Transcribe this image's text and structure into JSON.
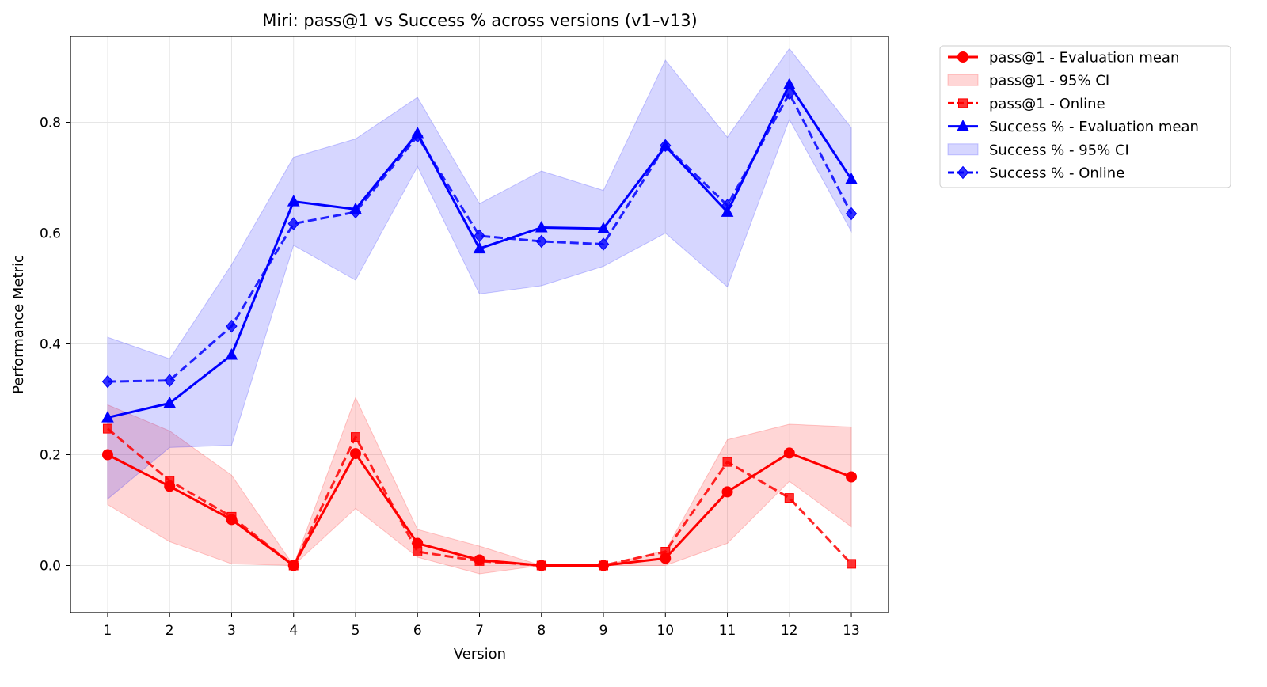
{
  "chart_data": {
    "type": "line",
    "title": "Miri: pass@1 vs Success % across versions (v1–v13)",
    "xlabel": "Version",
    "ylabel": "Performance Metric",
    "x": [
      1,
      2,
      3,
      4,
      5,
      6,
      7,
      8,
      9,
      10,
      11,
      12,
      13
    ],
    "xlim": [
      0.4,
      13.6
    ],
    "ylim": [
      -0.085,
      0.955
    ],
    "yticks": [
      0.0,
      0.2,
      0.4,
      0.6,
      0.8
    ],
    "ytick_labels": [
      "0.0",
      "0.2",
      "0.4",
      "0.6",
      "0.8"
    ],
    "grid": true,
    "legend_position": "outside-right-top",
    "series": [
      {
        "name": "pass@1 - Evaluation mean",
        "kind": "line",
        "marker": "circle",
        "linestyle": "solid",
        "color": "#ff0000",
        "values": [
          0.2,
          0.143,
          0.083,
          0.0,
          0.202,
          0.04,
          0.01,
          0.0,
          0.0,
          0.013,
          0.133,
          0.203,
          0.16
        ]
      },
      {
        "name": "pass@1 - 95% CI",
        "kind": "band",
        "color": "#ff0000",
        "lower": [
          0.11,
          0.043,
          0.003,
          0.0,
          0.103,
          0.015,
          -0.015,
          0.0,
          0.0,
          0.0,
          0.04,
          0.152,
          0.07
        ],
        "upper": [
          0.29,
          0.243,
          0.163,
          0.0,
          0.303,
          0.065,
          0.035,
          0.0,
          0.0,
          0.027,
          0.227,
          0.255,
          0.25
        ]
      },
      {
        "name": "pass@1 - Online",
        "kind": "line",
        "marker": "square",
        "linestyle": "dashed",
        "color": "#ff0000",
        "values": [
          0.247,
          0.153,
          0.088,
          0.0,
          0.232,
          0.025,
          0.008,
          0.0,
          0.0,
          0.025,
          0.187,
          0.122,
          0.003
        ]
      },
      {
        "name": "Success % - Evaluation mean",
        "kind": "line",
        "marker": "triangle",
        "linestyle": "solid",
        "color": "#0000ff",
        "values": [
          0.267,
          0.293,
          0.38,
          0.657,
          0.643,
          0.78,
          0.572,
          0.61,
          0.608,
          0.757,
          0.638,
          0.868,
          0.697
        ]
      },
      {
        "name": "Success % - 95% CI",
        "kind": "band",
        "color": "#0000ff",
        "lower": [
          0.12,
          0.213,
          0.217,
          0.578,
          0.515,
          0.72,
          0.49,
          0.505,
          0.54,
          0.6,
          0.503,
          0.805,
          0.603
        ],
        "upper": [
          0.412,
          0.373,
          0.543,
          0.737,
          0.77,
          0.845,
          0.653,
          0.712,
          0.677,
          0.912,
          0.773,
          0.933,
          0.79
        ]
      },
      {
        "name": "Success % - Online",
        "kind": "line",
        "marker": "diamond",
        "linestyle": "dashed",
        "color": "#0000ff",
        "values": [
          0.332,
          0.334,
          0.432,
          0.617,
          0.638,
          0.775,
          0.595,
          0.585,
          0.58,
          0.758,
          0.65,
          0.852,
          0.635
        ]
      }
    ]
  }
}
